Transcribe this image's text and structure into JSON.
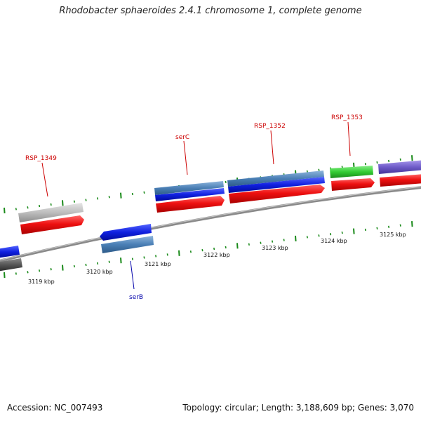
{
  "title": "Rhodobacter sphaeroides 2.4.1 chromosome 1, complete genome",
  "footer": {
    "accession": "Accession: NC_007493",
    "summary": "Topology: circular; Length: 3,188,609 bp; Genes: 3,070"
  },
  "scale_labels": [
    "3119 kbp",
    "3120 kbp",
    "3121 kbp",
    "3122 kbp",
    "3123 kbp",
    "3124 kbp",
    "3125 kbp"
  ],
  "gene_labels": [
    {
      "text": "RSP_1349",
      "color": "#cc0000"
    },
    {
      "text": "serC",
      "color": "#cc0000"
    },
    {
      "text": "RSP_1352",
      "color": "#cc0000"
    },
    {
      "text": "RSP_1353",
      "color": "#cc0000"
    },
    {
      "text": "serB",
      "color": "#0000aa"
    }
  ],
  "colors": {
    "backbone": "#8a8a8a",
    "ticks": "#1a8a1a",
    "cds": "#ee1111",
    "blue": "#1020e0",
    "steel": "#4a7fb5",
    "gray": "#bdbdbd",
    "dark_gray": "#555555",
    "green": "#33cc33",
    "purple": "#6f5cc8"
  }
}
